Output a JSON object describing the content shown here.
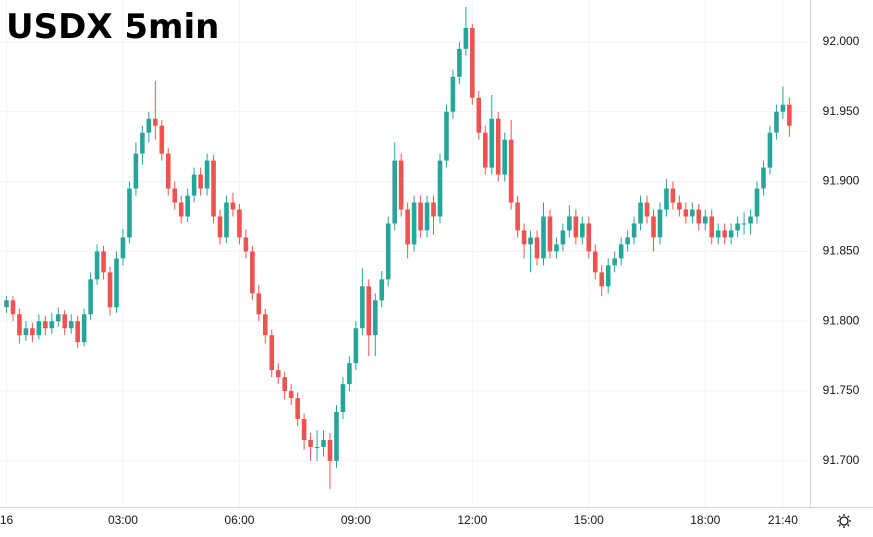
{
  "chart_data": {
    "type": "candlestick",
    "title": "USDX 5min",
    "up_color": "#26a69a",
    "down_color": "#ef5350",
    "grid": true,
    "ylim": [
      91.667,
      92.03
    ],
    "yticks": [
      {
        "value": 91.7,
        "label": "91.700"
      },
      {
        "value": 91.75,
        "label": "91.750"
      },
      {
        "value": 91.8,
        "label": "91.800"
      },
      {
        "value": 91.85,
        "label": "91.850"
      },
      {
        "value": 91.9,
        "label": "91.900"
      },
      {
        "value": 91.95,
        "label": "91.950"
      },
      {
        "value": 92.0,
        "label": "92.000"
      }
    ],
    "xticks": [
      {
        "value": "00:00",
        "label": "16"
      },
      "03:00",
      "06:00",
      "09:00",
      "12:00",
      "15:00",
      "18:00",
      "21:40"
    ],
    "categories": [
      "00:00",
      "00:10",
      "00:20",
      "00:30",
      "00:40",
      "00:50",
      "01:00",
      "01:10",
      "01:20",
      "01:30",
      "01:40",
      "01:50",
      "02:00",
      "02:10",
      "02:20",
      "02:30",
      "02:40",
      "02:50",
      "03:00",
      "03:10",
      "03:20",
      "03:30",
      "03:40",
      "03:50",
      "04:00",
      "04:10",
      "04:20",
      "04:30",
      "04:40",
      "04:50",
      "05:00",
      "05:10",
      "05:20",
      "05:30",
      "05:40",
      "05:50",
      "06:00",
      "06:10",
      "06:20",
      "06:30",
      "06:40",
      "06:50",
      "07:00",
      "07:10",
      "07:20",
      "07:30",
      "07:40",
      "07:50",
      "08:00",
      "08:10",
      "08:20",
      "08:30",
      "08:40",
      "08:50",
      "09:00",
      "09:10",
      "09:20",
      "09:30",
      "09:40",
      "09:50",
      "10:00",
      "10:10",
      "10:20",
      "10:30",
      "10:40",
      "10:50",
      "11:00",
      "11:10",
      "11:20",
      "11:30",
      "11:40",
      "11:50",
      "12:00",
      "12:10",
      "12:20",
      "12:30",
      "12:40",
      "12:50",
      "13:00",
      "13:10",
      "13:20",
      "13:30",
      "13:40",
      "13:50",
      "14:00",
      "14:10",
      "14:20",
      "14:30",
      "14:40",
      "14:50",
      "15:00",
      "15:10",
      "15:20",
      "15:30",
      "15:40",
      "15:50",
      "16:00",
      "16:10",
      "16:20",
      "16:30",
      "16:40",
      "16:50",
      "17:00",
      "17:10",
      "17:20",
      "17:30",
      "17:40",
      "17:50",
      "18:00",
      "18:10",
      "18:20",
      "18:30",
      "18:40",
      "18:50",
      "19:00",
      "20:50",
      "21:00",
      "21:10",
      "21:20",
      "21:30",
      "21:40",
      "21:50"
    ],
    "ohlc": [
      [
        91.81,
        91.818,
        91.806,
        91.815
      ],
      [
        91.815,
        91.818,
        91.8,
        91.805
      ],
      [
        91.805,
        91.809,
        91.784,
        91.79
      ],
      [
        91.79,
        91.8,
        91.786,
        91.795
      ],
      [
        91.795,
        91.799,
        91.785,
        91.79
      ],
      [
        91.79,
        91.805,
        91.787,
        91.8
      ],
      [
        91.8,
        91.804,
        91.79,
        91.795
      ],
      [
        91.795,
        91.806,
        91.791,
        91.8
      ],
      [
        91.8,
        91.81,
        91.796,
        91.805
      ],
      [
        91.805,
        91.808,
        91.79,
        91.795
      ],
      [
        91.795,
        91.805,
        91.791,
        91.8
      ],
      [
        91.8,
        91.804,
        91.781,
        91.785
      ],
      [
        91.785,
        91.809,
        91.782,
        91.805
      ],
      [
        91.805,
        91.835,
        91.801,
        91.83
      ],
      [
        91.83,
        91.855,
        91.826,
        91.85
      ],
      [
        91.85,
        91.854,
        91.83,
        91.835
      ],
      [
        91.835,
        91.839,
        91.804,
        91.81
      ],
      [
        91.81,
        91.85,
        91.806,
        91.845
      ],
      [
        91.845,
        91.866,
        91.84,
        91.86
      ],
      [
        91.86,
        91.9,
        91.856,
        91.895
      ],
      [
        91.895,
        91.928,
        91.89,
        91.92
      ],
      [
        91.92,
        91.94,
        91.912,
        91.935
      ],
      [
        91.935,
        91.95,
        91.928,
        91.945
      ],
      [
        91.945,
        91.972,
        91.93,
        91.94
      ],
      [
        91.94,
        91.944,
        91.915,
        91.92
      ],
      [
        91.92,
        91.924,
        91.89,
        91.895
      ],
      [
        91.895,
        91.9,
        91.88,
        91.885
      ],
      [
        91.885,
        91.89,
        91.87,
        91.875
      ],
      [
        91.875,
        91.895,
        91.871,
        91.89
      ],
      [
        91.89,
        91.91,
        91.885,
        91.905
      ],
      [
        91.905,
        91.91,
        91.89,
        91.895
      ],
      [
        91.895,
        91.92,
        91.89,
        91.915
      ],
      [
        91.915,
        91.919,
        91.87,
        91.875
      ],
      [
        91.875,
        91.88,
        91.855,
        91.86
      ],
      [
        91.86,
        91.89,
        91.856,
        91.885
      ],
      [
        91.885,
        91.892,
        91.875,
        91.88
      ],
      [
        91.88,
        91.884,
        91.855,
        91.86
      ],
      [
        91.86,
        91.866,
        91.845,
        91.85
      ],
      [
        91.85,
        91.854,
        91.815,
        91.82
      ],
      [
        91.82,
        91.826,
        91.8,
        91.805
      ],
      [
        91.805,
        91.809,
        91.784,
        91.79
      ],
      [
        91.79,
        91.794,
        91.76,
        91.765
      ],
      [
        91.765,
        91.77,
        91.755,
        91.76
      ],
      [
        91.76,
        91.764,
        91.744,
        91.75
      ],
      [
        91.75,
        91.755,
        91.74,
        91.745
      ],
      [
        91.745,
        91.749,
        91.725,
        91.73
      ],
      [
        91.73,
        91.734,
        91.708,
        91.715
      ],
      [
        91.715,
        91.72,
        91.7,
        91.71
      ],
      [
        91.71,
        91.722,
        91.7,
        91.71
      ],
      [
        91.71,
        91.722,
        91.703,
        91.715
      ],
      [
        91.715,
        91.72,
        91.68,
        91.7
      ],
      [
        91.7,
        91.74,
        91.695,
        91.735
      ],
      [
        91.735,
        91.76,
        91.73,
        91.755
      ],
      [
        91.755,
        91.775,
        91.75,
        91.77
      ],
      [
        91.77,
        91.8,
        91.765,
        91.795
      ],
      [
        91.795,
        91.838,
        91.79,
        91.825
      ],
      [
        91.825,
        91.83,
        91.775,
        91.79
      ],
      [
        91.79,
        91.82,
        91.775,
        91.815
      ],
      [
        91.815,
        91.836,
        91.81,
        91.83
      ],
      [
        91.83,
        91.875,
        91.825,
        91.87
      ],
      [
        91.87,
        91.928,
        91.865,
        91.915
      ],
      [
        91.915,
        91.92,
        91.875,
        91.88
      ],
      [
        91.88,
        91.885,
        91.845,
        91.855
      ],
      [
        91.855,
        91.89,
        91.85,
        91.885
      ],
      [
        91.885,
        91.89,
        91.86,
        91.865
      ],
      [
        91.865,
        91.89,
        91.86,
        91.885
      ],
      [
        91.885,
        91.89,
        91.862,
        91.875
      ],
      [
        91.875,
        91.92,
        91.87,
        91.915
      ],
      [
        91.915,
        91.955,
        91.91,
        91.95
      ],
      [
        91.95,
        91.98,
        91.945,
        91.975
      ],
      [
        91.975,
        92.0,
        91.97,
        91.995
      ],
      [
        91.995,
        92.025,
        91.99,
        92.01
      ],
      [
        92.01,
        92.013,
        91.955,
        91.96
      ],
      [
        91.96,
        91.965,
        91.93,
        91.935
      ],
      [
        91.935,
        91.94,
        91.905,
        91.91
      ],
      [
        91.91,
        91.962,
        91.905,
        91.945
      ],
      [
        91.945,
        91.95,
        91.9,
        91.905
      ],
      [
        91.905,
        91.935,
        91.9,
        91.93
      ],
      [
        91.93,
        91.944,
        91.88,
        91.885
      ],
      [
        91.885,
        91.89,
        91.86,
        91.865
      ],
      [
        91.865,
        91.87,
        91.845,
        91.855
      ],
      [
        91.855,
        91.865,
        91.835,
        91.86
      ],
      [
        91.86,
        91.865,
        91.84,
        91.845
      ],
      [
        91.845,
        91.885,
        91.84,
        91.875
      ],
      [
        91.875,
        91.88,
        91.845,
        91.85
      ],
      [
        91.85,
        91.86,
        91.845,
        91.855
      ],
      [
        91.855,
        91.87,
        91.85,
        91.865
      ],
      [
        91.865,
        91.883,
        91.86,
        91.875
      ],
      [
        91.875,
        91.88,
        91.855,
        91.86
      ],
      [
        91.86,
        91.875,
        91.855,
        91.87
      ],
      [
        91.87,
        91.875,
        91.845,
        91.85
      ],
      [
        91.85,
        91.855,
        91.83,
        91.835
      ],
      [
        91.835,
        91.84,
        91.818,
        91.825
      ],
      [
        91.825,
        91.845,
        91.82,
        91.84
      ],
      [
        91.84,
        91.85,
        91.835,
        91.845
      ],
      [
        91.845,
        91.86,
        91.84,
        91.855
      ],
      [
        91.855,
        91.865,
        91.85,
        91.86
      ],
      [
        91.86,
        91.875,
        91.855,
        91.87
      ],
      [
        91.87,
        91.89,
        91.865,
        91.885
      ],
      [
        91.885,
        91.89,
        91.87,
        91.875
      ],
      [
        91.875,
        91.88,
        91.85,
        91.86
      ],
      [
        91.86,
        91.885,
        91.855,
        91.88
      ],
      [
        91.88,
        91.902,
        91.875,
        91.895
      ],
      [
        91.895,
        91.9,
        91.88,
        91.885
      ],
      [
        91.885,
        91.89,
        91.875,
        91.88
      ],
      [
        91.88,
        91.885,
        91.87,
        91.875
      ],
      [
        91.875,
        91.885,
        91.87,
        91.88
      ],
      [
        91.88,
        91.884,
        91.865,
        91.87
      ],
      [
        91.87,
        91.88,
        91.865,
        91.875
      ],
      [
        91.875,
        91.88,
        91.855,
        91.86
      ],
      [
        91.86,
        91.87,
        91.855,
        91.865
      ],
      [
        91.865,
        91.87,
        91.855,
        91.86
      ],
      [
        91.86,
        91.87,
        91.855,
        91.865
      ],
      [
        91.865,
        91.875,
        91.86,
        91.87
      ],
      [
        91.87,
        91.878,
        91.862,
        91.87
      ],
      [
        91.87,
        91.88,
        91.862,
        91.875
      ],
      [
        91.875,
        91.9,
        91.87,
        91.895
      ],
      [
        91.895,
        91.915,
        91.89,
        91.91
      ],
      [
        91.91,
        91.94,
        91.905,
        91.935
      ],
      [
        91.935,
        91.955,
        91.93,
        91.95
      ],
      [
        91.95,
        91.968,
        91.945,
        91.955
      ],
      [
        91.955,
        91.96,
        91.932,
        91.94
      ]
    ]
  }
}
